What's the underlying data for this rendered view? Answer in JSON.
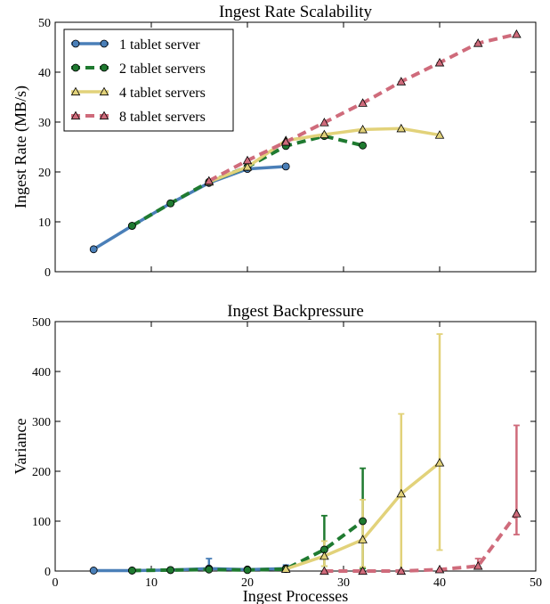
{
  "chart_data": [
    {
      "type": "line",
      "title": "Ingest Rate Scalability",
      "xlabel": "",
      "ylabel": "Ingest Rate (MB/s)",
      "xlim": [
        0,
        50
      ],
      "ylim": [
        0,
        50
      ],
      "xticks": [
        0,
        10,
        20,
        30,
        40,
        50
      ],
      "yticks": [
        0,
        10,
        20,
        30,
        40,
        50
      ],
      "x_tick_labels_shown": false,
      "legend_position": "top-left",
      "grid": false,
      "series": [
        {
          "name": "1 tablet server",
          "color": "#4a7fb8",
          "marker": "circle",
          "dash": "solid",
          "x": [
            4,
            8,
            12,
            16,
            20,
            24
          ],
          "y": [
            4.5,
            9.2,
            13.7,
            17.8,
            20.6,
            21.1
          ]
        },
        {
          "name": "2 tablet servers",
          "color": "#1f7a30",
          "marker": "circle",
          "dash": "dashed",
          "x": [
            8,
            12,
            16,
            20,
            24,
            28,
            32
          ],
          "y": [
            9.2,
            13.7,
            18.0,
            21.0,
            25.2,
            27.2,
            25.3
          ]
        },
        {
          "name": "4 tablet servers",
          "color": "#e2d27a",
          "marker": "triangle",
          "dash": "solid",
          "x": [
            16,
            20,
            24,
            28,
            32,
            36,
            40
          ],
          "y": [
            18.0,
            21.0,
            26.3,
            27.5,
            28.5,
            28.7,
            27.4
          ]
        },
        {
          "name": "8 tablet servers",
          "color": "#cf6b7b",
          "marker": "triangle",
          "dash": "dashed",
          "x": [
            16,
            20,
            24,
            28,
            32,
            36,
            40,
            44,
            48
          ],
          "y": [
            18.2,
            22.3,
            26.0,
            29.9,
            33.8,
            38.1,
            41.9,
            45.8,
            47.6
          ]
        }
      ]
    },
    {
      "type": "line",
      "title": "Ingest Backpressure",
      "xlabel": "Ingest Processes",
      "ylabel": "Variance",
      "xlim": [
        0,
        50
      ],
      "ylim": [
        0,
        500
      ],
      "xticks": [
        0,
        10,
        20,
        30,
        40,
        50
      ],
      "yticks": [
        0,
        100,
        200,
        300,
        400,
        500
      ],
      "grid": false,
      "error_bars": true,
      "series": [
        {
          "name": "1 tablet server",
          "color": "#4a7fb8",
          "marker": "circle",
          "dash": "solid",
          "x": [
            4,
            8,
            12,
            16,
            20,
            24
          ],
          "y": [
            1,
            1,
            2,
            5,
            3,
            5
          ],
          "err_low": [
            1,
            1,
            2,
            5,
            3,
            5
          ],
          "err_high": [
            1,
            1,
            4,
            20,
            3,
            7
          ]
        },
        {
          "name": "2 tablet servers",
          "color": "#1f7a30",
          "marker": "circle",
          "dash": "dashed",
          "x": [
            8,
            12,
            16,
            20,
            24,
            28,
            32
          ],
          "y": [
            1,
            2,
            3,
            2,
            4,
            43,
            100
          ],
          "err_low": [
            1,
            2,
            3,
            2,
            4,
            33,
            95
          ],
          "err_high": [
            1,
            2,
            3,
            2,
            4,
            68,
            106
          ]
        },
        {
          "name": "4 tablet servers",
          "color": "#e2d27a",
          "marker": "triangle",
          "dash": "solid",
          "x": [
            24,
            28,
            32,
            36,
            40
          ],
          "y": [
            4,
            30,
            63,
            155,
            217
          ],
          "err_low": [
            4,
            20,
            55,
            155,
            175
          ],
          "err_high": [
            4,
            30,
            80,
            160,
            258
          ]
        },
        {
          "name": "8 tablet servers",
          "color": "#cf6b7b",
          "marker": "triangle",
          "dash": "dashed",
          "x": [
            28,
            32,
            36,
            40,
            44,
            48
          ],
          "y": [
            0,
            0,
            0,
            3,
            10,
            115
          ],
          "err_low": [
            0,
            0,
            0,
            0,
            5,
            42
          ],
          "err_high": [
            0,
            0,
            0,
            0,
            15,
            177
          ]
        }
      ]
    }
  ]
}
